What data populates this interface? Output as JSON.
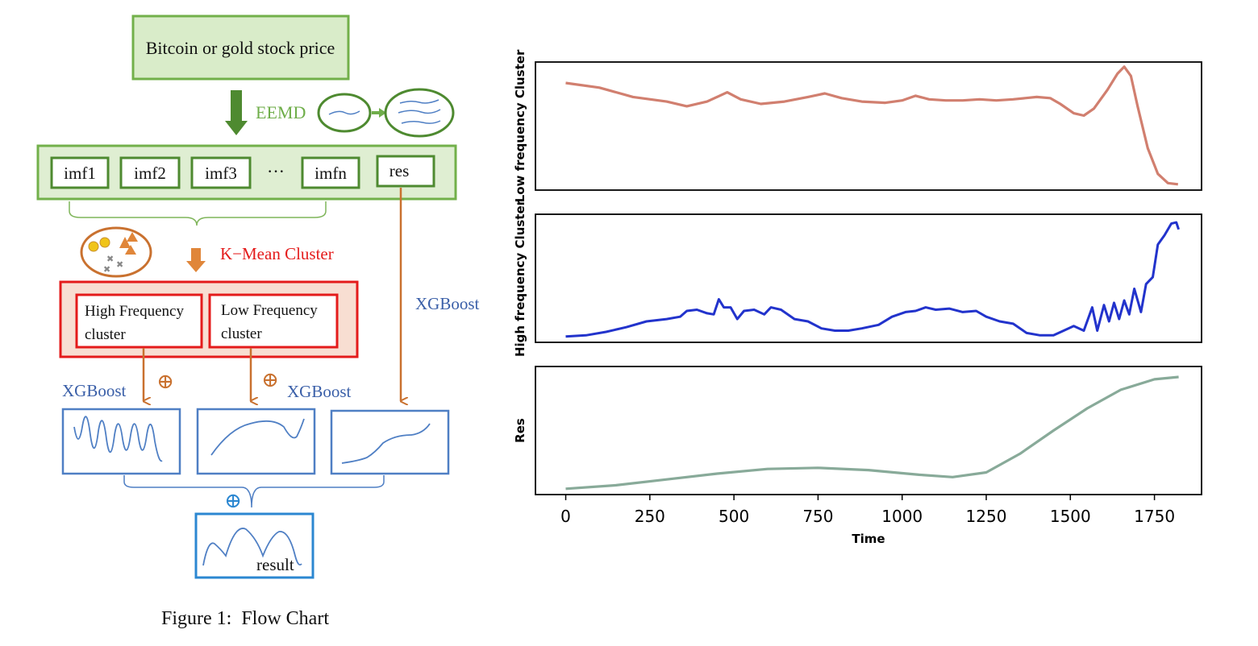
{
  "flowchart": {
    "source_box": "Bitcoin or gold stock price",
    "decomposition": "EEMD",
    "components": [
      "imf1",
      "imf2",
      "imf3",
      "···",
      "imfn",
      "res"
    ],
    "clustering": "K−Mean Cluster",
    "clusters": {
      "high_line1": "High Frequency",
      "high_line2": "cluster",
      "low_line1": "Low Frequency",
      "low_line2": "cluster"
    },
    "model_left": "XGBoost",
    "model_mid": "XGBoost",
    "model_right": "XGBoost",
    "plus_symbol": "⊕",
    "result": "result",
    "caption": "Figure 1:  Flow Chart"
  },
  "chart_data": {
    "type": "line",
    "xlabel": "Time",
    "xlim": [
      -90,
      1890
    ],
    "xticks": [
      0,
      250,
      500,
      750,
      1000,
      1250,
      1500,
      1750
    ],
    "panels": [
      {
        "ylabel": "Low frequency Cluster",
        "ylim": [
          0,
          1.1
        ],
        "color": "#d17f6f",
        "points": [
          [
            0,
            0.92
          ],
          [
            100,
            0.88
          ],
          [
            200,
            0.8
          ],
          [
            300,
            0.76
          ],
          [
            360,
            0.72
          ],
          [
            420,
            0.76
          ],
          [
            480,
            0.84
          ],
          [
            520,
            0.78
          ],
          [
            580,
            0.74
          ],
          [
            650,
            0.76
          ],
          [
            720,
            0.8
          ],
          [
            770,
            0.83
          ],
          [
            820,
            0.79
          ],
          [
            880,
            0.76
          ],
          [
            950,
            0.75
          ],
          [
            1000,
            0.77
          ],
          [
            1040,
            0.81
          ],
          [
            1080,
            0.78
          ],
          [
            1130,
            0.77
          ],
          [
            1180,
            0.77
          ],
          [
            1230,
            0.78
          ],
          [
            1280,
            0.77
          ],
          [
            1330,
            0.78
          ],
          [
            1400,
            0.8
          ],
          [
            1440,
            0.79
          ],
          [
            1470,
            0.74
          ],
          [
            1510,
            0.66
          ],
          [
            1540,
            0.64
          ],
          [
            1570,
            0.7
          ],
          [
            1610,
            0.86
          ],
          [
            1640,
            1.0
          ],
          [
            1660,
            1.06
          ],
          [
            1680,
            0.98
          ],
          [
            1700,
            0.72
          ],
          [
            1730,
            0.36
          ],
          [
            1760,
            0.14
          ],
          [
            1790,
            0.06
          ],
          [
            1820,
            0.05
          ]
        ]
      },
      {
        "ylabel": "High frequency Cluster",
        "ylim": [
          0,
          1.1
        ],
        "color": "#2233cc",
        "points": [
          [
            0,
            0.05
          ],
          [
            60,
            0.06
          ],
          [
            120,
            0.09
          ],
          [
            180,
            0.13
          ],
          [
            240,
            0.18
          ],
          [
            300,
            0.2
          ],
          [
            340,
            0.22
          ],
          [
            360,
            0.27
          ],
          [
            390,
            0.28
          ],
          [
            420,
            0.25
          ],
          [
            440,
            0.24
          ],
          [
            455,
            0.37
          ],
          [
            470,
            0.3
          ],
          [
            490,
            0.3
          ],
          [
            510,
            0.2
          ],
          [
            530,
            0.27
          ],
          [
            560,
            0.28
          ],
          [
            590,
            0.24
          ],
          [
            610,
            0.3
          ],
          [
            640,
            0.28
          ],
          [
            680,
            0.2
          ],
          [
            720,
            0.18
          ],
          [
            760,
            0.12
          ],
          [
            800,
            0.1
          ],
          [
            840,
            0.1
          ],
          [
            880,
            0.12
          ],
          [
            930,
            0.15
          ],
          [
            970,
            0.22
          ],
          [
            1010,
            0.26
          ],
          [
            1040,
            0.27
          ],
          [
            1070,
            0.3
          ],
          [
            1100,
            0.28
          ],
          [
            1140,
            0.29
          ],
          [
            1180,
            0.26
          ],
          [
            1220,
            0.27
          ],
          [
            1250,
            0.22
          ],
          [
            1290,
            0.18
          ],
          [
            1330,
            0.16
          ],
          [
            1370,
            0.08
          ],
          [
            1410,
            0.06
          ],
          [
            1450,
            0.06
          ],
          [
            1480,
            0.1
          ],
          [
            1510,
            0.14
          ],
          [
            1540,
            0.1
          ],
          [
            1565,
            0.3
          ],
          [
            1580,
            0.1
          ],
          [
            1600,
            0.32
          ],
          [
            1615,
            0.18
          ],
          [
            1630,
            0.34
          ],
          [
            1645,
            0.2
          ],
          [
            1660,
            0.36
          ],
          [
            1675,
            0.24
          ],
          [
            1690,
            0.46
          ],
          [
            1710,
            0.26
          ],
          [
            1725,
            0.5
          ],
          [
            1745,
            0.56
          ],
          [
            1760,
            0.84
          ],
          [
            1780,
            0.92
          ],
          [
            1800,
            1.02
          ],
          [
            1815,
            1.03
          ],
          [
            1822,
            0.97
          ]
        ]
      },
      {
        "ylabel": "Res",
        "ylim": [
          0,
          1.1
        ],
        "color": "#88aa99",
        "points": [
          [
            0,
            0.05
          ],
          [
            150,
            0.08
          ],
          [
            300,
            0.13
          ],
          [
            450,
            0.18
          ],
          [
            600,
            0.22
          ],
          [
            750,
            0.23
          ],
          [
            900,
            0.21
          ],
          [
            1050,
            0.17
          ],
          [
            1150,
            0.15
          ],
          [
            1250,
            0.19
          ],
          [
            1350,
            0.35
          ],
          [
            1450,
            0.55
          ],
          [
            1550,
            0.74
          ],
          [
            1650,
            0.9
          ],
          [
            1750,
            0.99
          ],
          [
            1822,
            1.01
          ]
        ]
      }
    ]
  }
}
